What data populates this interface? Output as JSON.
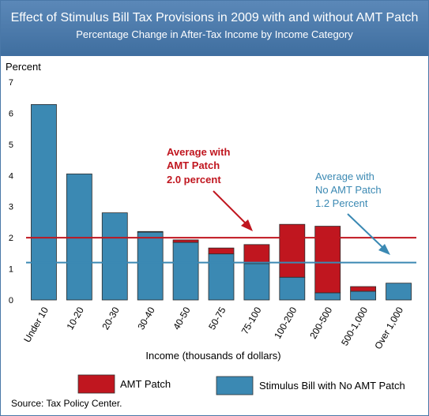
{
  "header": {
    "title": "Effect of Stimulus Bill Tax Provisions in 2009 with and without AMT Patch",
    "subtitle": "Percentage Change in After-Tax Income by Income Category"
  },
  "chart_data": {
    "type": "bar",
    "stacked": true,
    "title": "Effect of Stimulus Bill Tax Provisions in 2009 with and without AMT Patch",
    "subtitle": "Percentage Change in After-Tax Income by Income Category",
    "ylabel": "Percent",
    "xlabel": "Income (thousands of dollars)",
    "ylim": [
      0,
      7
    ],
    "yticks": [
      "0",
      "1",
      "2",
      "3",
      "4",
      "5",
      "6",
      "7"
    ],
    "categories": [
      "Under 10",
      "10-20",
      "20-30",
      "30-40",
      "40-50",
      "50-75",
      "75-100",
      "100-200",
      "200-500",
      "500-1,000",
      "Over 1,000"
    ],
    "series": [
      {
        "name": "Stimulus Bill with No AMT Patch",
        "color": "#3b89b3",
        "values": [
          6.28,
          4.05,
          2.8,
          2.18,
          1.85,
          1.48,
          1.17,
          0.73,
          0.23,
          0.28,
          0.54
        ]
      },
      {
        "name": "AMT Patch",
        "color": "#c0161f",
        "values": [
          0,
          0,
          0,
          0.02,
          0.08,
          0.19,
          0.61,
          1.7,
          2.14,
          0.15,
          0
        ]
      }
    ],
    "reference_lines": [
      {
        "value": 2.0,
        "color": "#c0161f"
      },
      {
        "value": 1.2,
        "color": "#3b89b3"
      }
    ],
    "annotations": {
      "with_patch": [
        "Average with",
        "AMT Patch",
        "2.0 percent"
      ],
      "no_patch": [
        "Average with",
        "No AMT Patch",
        "1.2 Percent"
      ]
    },
    "legend": [
      {
        "label": "AMT Patch",
        "color": "#c0161f"
      },
      {
        "label": "Stimulus Bill with No AMT Patch",
        "color": "#3b89b3"
      }
    ],
    "legend_position": "bottom",
    "grid": false
  },
  "source": "Source: Tax Policy Center."
}
